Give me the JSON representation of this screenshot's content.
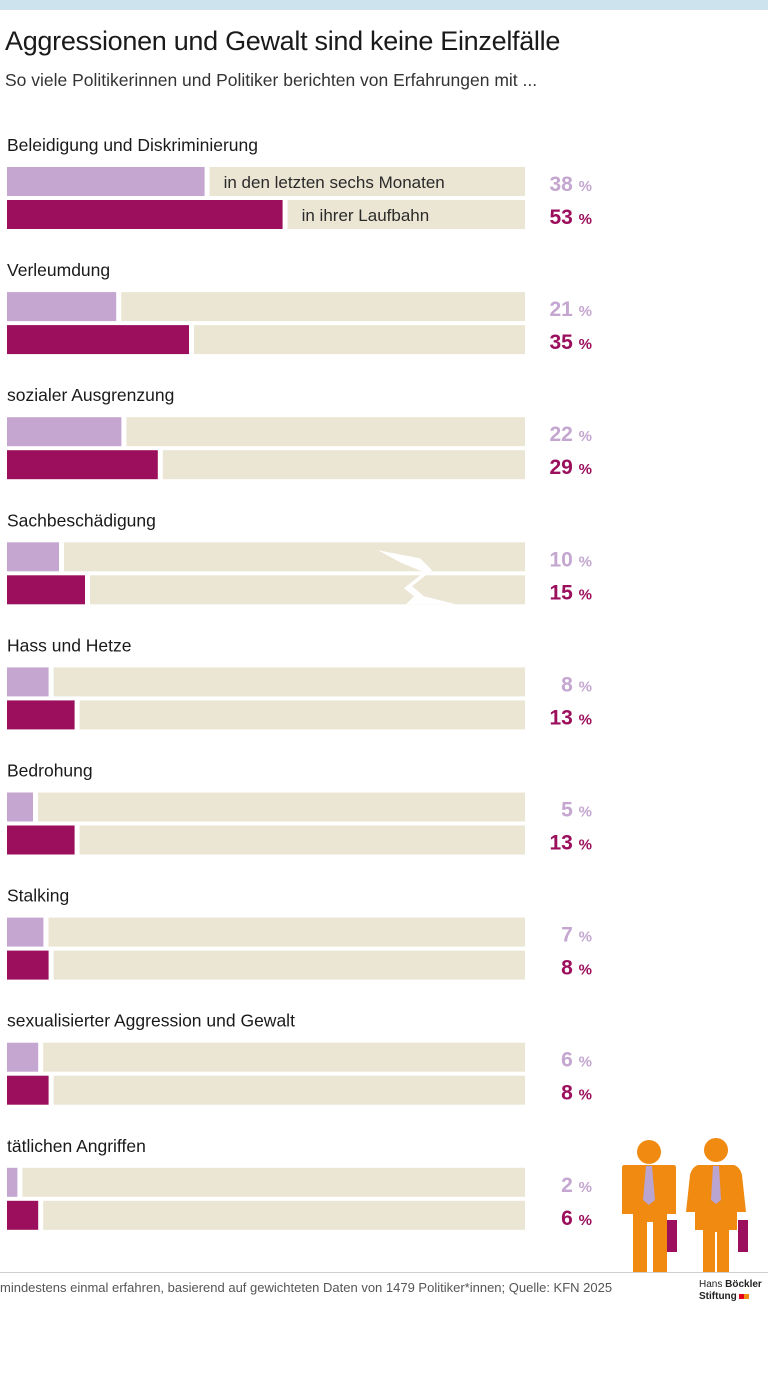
{
  "header": {
    "title": "Aggressionen und Gewalt sind keine Einzelfälle",
    "subtitle": "So viele Politikerinnen und Politiker berichten von Erfahrungen mit ..."
  },
  "colors": {
    "six_months": "#c4a6d0",
    "career": "#9b0f5c",
    "track": "#ebe5d4",
    "person": "#f08a10",
    "tie": "#b9a5cf",
    "bag": "#9b0f5c"
  },
  "chart_data": {
    "type": "bar",
    "orientation": "horizontal",
    "title": "Aggressionen und Gewalt sind keine Einzelfälle",
    "subtitle": "So viele Politikerinnen und Politiker berichten von Erfahrungen mit ...",
    "unit": "%",
    "xlim": [
      0,
      100
    ],
    "categories": [
      "Beleidigung und Diskriminierung",
      "Verleumdung",
      "sozialer Ausgrenzung",
      "Sachbeschädigung",
      "Hass und Hetze",
      "Bedrohung",
      "Stalking",
      "sexualisierter Aggression und Gewalt",
      "tätlichen Angriffen"
    ],
    "series": [
      {
        "name": "in den letzten sechs Monaten",
        "values": [
          38,
          21,
          22,
          10,
          8,
          5,
          7,
          6,
          2
        ]
      },
      {
        "name": "in ihrer Laufbahn",
        "values": [
          53,
          35,
          29,
          15,
          13,
          13,
          8,
          8,
          6
        ]
      }
    ],
    "value_suffix": "%"
  },
  "footer": {
    "source": "mindestens einmal erfahren, basierend auf gewichteten Daten von 1479 Politiker*innen; Quelle: KFN 2025",
    "logo_line1_a": "Hans",
    "logo_line1_b": "Böckler",
    "logo_line2": "Stiftung"
  }
}
